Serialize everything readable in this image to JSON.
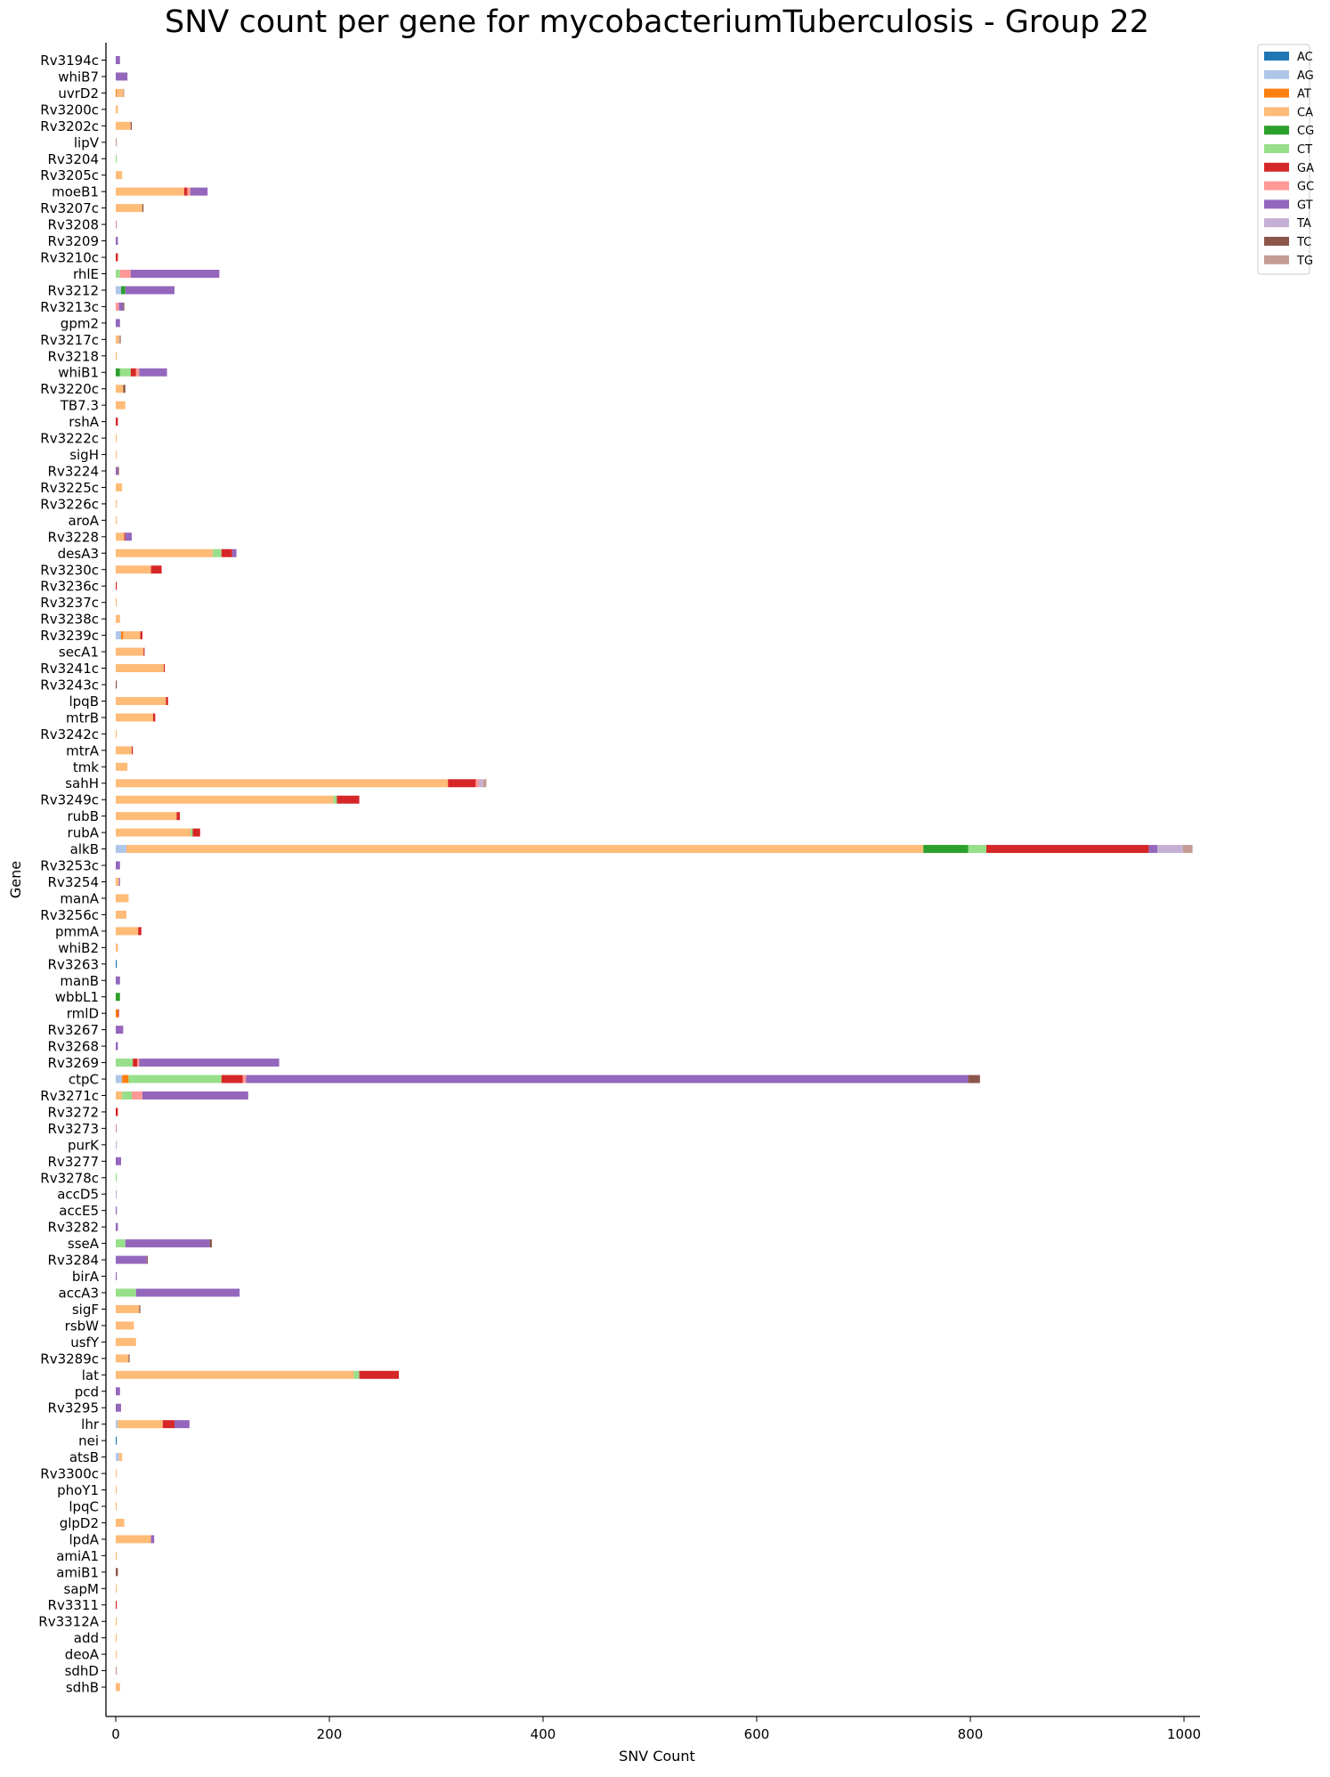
{
  "chart_data": {
    "type": "bar",
    "orientation": "horizontal",
    "stacked": true,
    "title": "SNV count per gene for mycobacteriumTuberculosis - Group 22",
    "xlabel": "SNV Count",
    "ylabel": "Gene",
    "xlim": [
      0,
      1015
    ],
    "xticks": [
      0,
      200,
      400,
      600,
      800,
      1000
    ],
    "grid": false,
    "legend_position": "top-right",
    "categories": [
      "Rv3194c",
      "whiB7",
      "uvrD2",
      "Rv3200c",
      "Rv3202c",
      "lipV",
      "Rv3204",
      "Rv3205c",
      "moeB1",
      "Rv3207c",
      "Rv3208",
      "Rv3209",
      "Rv3210c",
      "rhlE",
      "Rv3212",
      "Rv3213c",
      "gpm2",
      "Rv3217c",
      "Rv3218",
      "whiB1",
      "Rv3220c",
      "TB7.3",
      "rshA",
      "Rv3222c",
      "sigH",
      "Rv3224",
      "Rv3225c",
      "Rv3226c",
      "aroA",
      "Rv3228",
      "desA3",
      "Rv3230c",
      "Rv3236c",
      "Rv3237c",
      "Rv3238c",
      "Rv3239c",
      "secA1",
      "Rv3241c",
      "Rv3243c",
      "lpqB",
      "mtrB",
      "Rv3242c",
      "mtrA",
      "tmk",
      "sahH",
      "Rv3249c",
      "rubB",
      "rubA",
      "alkB",
      "Rv3253c",
      "Rv3254",
      "manA",
      "Rv3256c",
      "pmmA",
      "whiB2",
      "Rv3263",
      "manB",
      "wbbL1",
      "rmlD",
      "Rv3267",
      "Rv3268",
      "Rv3269",
      "ctpC",
      "Rv3271c",
      "Rv3272",
      "Rv3273",
      "purK",
      "Rv3277",
      "Rv3278c",
      "accD5",
      "accE5",
      "Rv3282",
      "sseA",
      "Rv3284",
      "birA",
      "accA3",
      "sigF",
      "rsbW",
      "usfY",
      "Rv3289c",
      "lat",
      "pcd",
      "Rv3295",
      "lhr",
      "nei",
      "atsB",
      "Rv3300c",
      "phoY1",
      "lpqC",
      "glpD2",
      "lpdA",
      "amiA1",
      "amiB1",
      "sapM",
      "Rv3311",
      "Rv3312A",
      "add",
      "deoA",
      "sdhD",
      "sdhB"
    ],
    "series_order": [
      "AC",
      "AG",
      "AT",
      "CA",
      "CG",
      "CT",
      "GA",
      "GC",
      "GT",
      "TA",
      "TC",
      "TG"
    ],
    "colors": {
      "AC": "#1f77b4",
      "AG": "#aec7e8",
      "AT": "#ff7f0e",
      "CA": "#ffbb78",
      "CG": "#2ca02c",
      "CT": "#98df8a",
      "GA": "#d62728",
      "GC": "#ff9896",
      "GT": "#9467bd",
      "TA": "#c5b0d5",
      "TC": "#8c564b",
      "TG": "#c49c94"
    },
    "values": {
      "Rv3194c": {
        "GT": 4
      },
      "whiB7": {
        "GT": 11
      },
      "uvrD2": {
        "CA": 6,
        "AT": 1,
        "TG": 1
      },
      "Rv3200c": {
        "CA": 2
      },
      "Rv3202c": {
        "CA": 14,
        "TC": 1
      },
      "lipV": {
        "TG": 1
      },
      "Rv3204": {
        "CT": 1
      },
      "Rv3205c": {
        "CA": 6
      },
      "moeB1": {
        "CA": 64,
        "GA": 3,
        "GC": 3,
        "GT": 16
      },
      "Rv3207c": {
        "CA": 25,
        "TC": 1
      },
      "Rv3208": {
        "TG": 1
      },
      "Rv3209": {
        "GT": 2
      },
      "Rv3210c": {
        "GA": 2
      },
      "rhlE": {
        "CT": 4,
        "GC": 10,
        "GT": 83
      },
      "Rv3212": {
        "CG": 4,
        "AG": 5,
        "GT": 46
      },
      "Rv3213c": {
        "GC": 3,
        "TC": 1,
        "GT": 4
      },
      "gpm2": {
        "GT": 4
      },
      "Rv3217c": {
        "CA": 3,
        "TG": 2
      },
      "Rv3218": {
        "CA": 1
      },
      "whiB1": {
        "CG": 4,
        "CT": 10,
        "GA": 5,
        "GC": 3,
        "GT": 26
      },
      "Rv3220c": {
        "CA": 7,
        "TC": 2
      },
      "TB7.3": {
        "CA": 9
      },
      "rshA": {
        "GA": 2
      },
      "Rv3222c": {
        "CA": 1
      },
      "sigH": {
        "CA": 1
      },
      "Rv3224": {
        "TC": 1,
        "GT": 2
      },
      "Rv3225c": {
        "CA": 6
      },
      "Rv3226c": {
        "CA": 1
      },
      "aroA": {
        "CA": 1
      },
      "Rv3228": {
        "CA": 8,
        "GA": 1,
        "GT": 6
      },
      "desA3": {
        "CA": 91,
        "CT": 8,
        "GA": 10,
        "GT": 4
      },
      "Rv3230c": {
        "CA": 33,
        "GA": 10
      },
      "Rv3236c": {
        "GA": 1
      },
      "Rv3237c": {
        "CA": 1
      },
      "Rv3238c": {
        "CA": 4
      },
      "Rv3239c": {
        "AG": 5,
        "AT": 2,
        "CA": 16,
        "GA": 2
      },
      "secA1": {
        "CA": 26,
        "GA": 1
      },
      "Rv3241c": {
        "CA": 45,
        "GA": 1
      },
      "Rv3243c": {
        "TC": 1
      },
      "lpqB": {
        "CA": 47,
        "GA": 2
      },
      "mtrB": {
        "CA": 35,
        "GA": 2
      },
      "Rv3242c": {
        "CA": 1
      },
      "mtrA": {
        "CA": 15,
        "GA": 1
      },
      "tmk": {
        "CA": 11
      },
      "sahH": {
        "CA": 311,
        "GA": 26,
        "GC": 3,
        "TA": 4,
        "TG": 3
      },
      "Rv3249c": {
        "CA": 204,
        "CT": 3,
        "GA": 21
      },
      "rubB": {
        "CA": 57,
        "GA": 3
      },
      "rubA": {
        "CA": 70,
        "CT": 2,
        "GA": 7
      },
      "alkB": {
        "AG": 10,
        "CA": 746,
        "CG": 42,
        "CT": 17,
        "GA": 152,
        "GT": 8,
        "TA": 24,
        "TG": 9
      },
      "Rv3253c": {
        "GT": 4
      },
      "Rv3254": {
        "CA": 3,
        "GT": 1
      },
      "manA": {
        "CA": 12
      },
      "Rv3256c": {
        "CA": 10
      },
      "pmmA": {
        "CA": 21,
        "GA": 3
      },
      "whiB2": {
        "CA": 2
      },
      "Rv3263": {
        "AC": 1
      },
      "manB": {
        "GT": 4
      },
      "wbbL1": {
        "CG": 4
      },
      "rmlD": {
        "AT": 2,
        "GA": 1
      },
      "Rv3267": {
        "GT": 7
      },
      "Rv3268": {
        "GT": 2
      },
      "Rv3269": {
        "CT": 16,
        "GA": 4,
        "GC": 2,
        "GT": 131
      },
      "ctpC": {
        "AG": 6,
        "AT": 6,
        "CT": 87,
        "GA": 20,
        "GC": 3,
        "GT": 676,
        "TC": 11
      },
      "Rv3271c": {
        "CA": 6,
        "CT": 9,
        "GC": 10,
        "GT": 99
      },
      "Rv3272": {
        "GA": 2
      },
      "Rv3273": {
        "TG": 1
      },
      "purK": {
        "TA": 1
      },
      "Rv3277": {
        "GT": 5
      },
      "Rv3278c": {
        "CT": 1
      },
      "accD5": {
        "TA": 1
      },
      "accE5": {
        "GT": 1
      },
      "Rv3282": {
        "GT": 2
      },
      "sseA": {
        "CT": 9,
        "GT": 79,
        "TC": 2
      },
      "Rv3284": {
        "GT": 29,
        "TC": 1
      },
      "birA": {
        "GT": 1
      },
      "accA3": {
        "CT": 19,
        "GT": 97
      },
      "sigF": {
        "CA": 22,
        "TC": 1
      },
      "rsbW": {
        "CA": 17
      },
      "usfY": {
        "CA": 19
      },
      "Rv3289c": {
        "CA": 12,
        "TC": 1
      },
      "lat": {
        "CA": 223,
        "CT": 5,
        "GA": 37
      },
      "pcd": {
        "GT": 4
      },
      "Rv3295": {
        "GT": 5
      },
      "lhr": {
        "AG": 2,
        "CA": 42,
        "GA": 11,
        "GT": 14
      },
      "nei": {
        "AC": 1
      },
      "atsB": {
        "CA": 3,
        "AG": 3
      },
      "Rv3300c": {
        "CA": 1
      },
      "phoY1": {
        "CA": 1
      },
      "lpqC": {
        "CA": 1
      },
      "glpD2": {
        "CA": 8
      },
      "lpdA": {
        "CA": 33,
        "GT": 3
      },
      "amiA1": {
        "CA": 1
      },
      "amiB1": {
        "TC": 2
      },
      "sapM": {
        "CA": 1
      },
      "Rv3311": {
        "GA": 1
      },
      "Rv3312A": {
        "CA": 1
      },
      "add": {
        "CA": 1
      },
      "deoA": {
        "CA": 1
      },
      "sdhD": {
        "TG": 1
      },
      "sdhB": {
        "CA": 4
      }
    }
  }
}
